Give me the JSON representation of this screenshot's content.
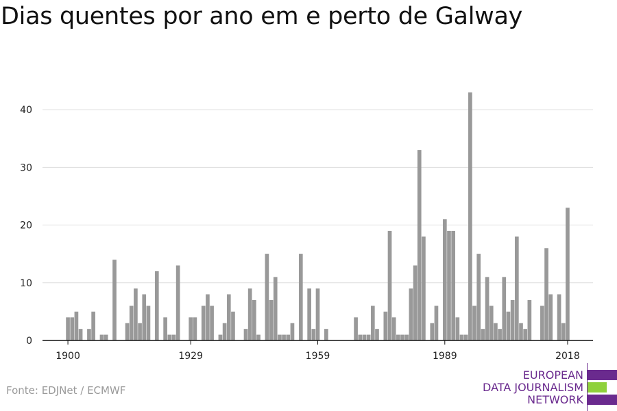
{
  "title": "Dias quentes por ano em e perto de Galway",
  "source": "Fonte: EDJNet / ECMWF",
  "logo": {
    "line1": "EUROPEAN",
    "line2": "DATA JOURNALISM",
    "line3": "NETWORK",
    "colors": {
      "purple": "#6a2a8e",
      "green": "#8fd13b"
    }
  },
  "colors": {
    "bar": "#999999",
    "grid": "#dddddd",
    "axis": "#111111"
  },
  "chart_data": {
    "type": "bar",
    "title": "Dias quentes por ano em e perto de Galway",
    "xlabel": "",
    "ylabel": "",
    "x_ticks": [
      1900,
      1929,
      1959,
      1989,
      2018
    ],
    "y_ticks": [
      0,
      10,
      20,
      30,
      40
    ],
    "ylim": [
      0,
      45
    ],
    "xlim": [
      1894,
      2024
    ],
    "grid": true,
    "years": [
      1900,
      1901,
      1902,
      1903,
      1904,
      1905,
      1906,
      1907,
      1908,
      1909,
      1910,
      1911,
      1912,
      1913,
      1914,
      1915,
      1916,
      1917,
      1918,
      1919,
      1920,
      1921,
      1922,
      1923,
      1924,
      1925,
      1926,
      1927,
      1928,
      1929,
      1930,
      1931,
      1932,
      1933,
      1934,
      1935,
      1936,
      1937,
      1938,
      1939,
      1940,
      1941,
      1942,
      1943,
      1944,
      1945,
      1946,
      1947,
      1948,
      1949,
      1950,
      1951,
      1952,
      1953,
      1954,
      1955,
      1956,
      1957,
      1958,
      1959,
      1960,
      1961,
      1962,
      1963,
      1964,
      1965,
      1966,
      1967,
      1968,
      1969,
      1970,
      1971,
      1972,
      1973,
      1974,
      1975,
      1976,
      1977,
      1978,
      1979,
      1980,
      1981,
      1982,
      1983,
      1984,
      1985,
      1986,
      1987,
      1988,
      1989,
      1990,
      1991,
      1992,
      1993,
      1994,
      1995,
      1996,
      1997,
      1998,
      1999,
      2000,
      2001,
      2002,
      2003,
      2004,
      2005,
      2006,
      2007,
      2008,
      2009,
      2010,
      2011,
      2012,
      2013,
      2014,
      2015,
      2016,
      2017,
      2018
    ],
    "values": [
      4,
      4,
      5,
      2,
      0,
      2,
      5,
      0,
      1,
      1,
      0,
      14,
      0,
      0,
      3,
      6,
      9,
      3,
      8,
      6,
      0,
      12,
      0,
      4,
      1,
      1,
      13,
      0,
      0,
      4,
      4,
      0,
      6,
      8,
      6,
      0,
      1,
      3,
      8,
      5,
      0,
      0,
      2,
      9,
      7,
      1,
      0,
      15,
      7,
      11,
      1,
      1,
      1,
      3,
      0,
      15,
      0,
      9,
      2,
      9,
      0,
      2,
      0,
      0,
      0,
      0,
      0,
      0,
      4,
      1,
      1,
      1,
      6,
      2,
      0,
      5,
      19,
      4,
      1,
      1,
      1,
      9,
      13,
      33,
      18,
      0,
      3,
      6,
      0,
      21,
      19,
      19,
      4,
      1,
      1,
      43,
      6,
      15,
      2,
      11,
      6,
      3,
      2,
      11,
      5,
      7,
      18,
      3,
      2,
      7,
      0,
      0,
      6,
      16,
      8,
      0,
      8,
      3,
      23
    ]
  }
}
